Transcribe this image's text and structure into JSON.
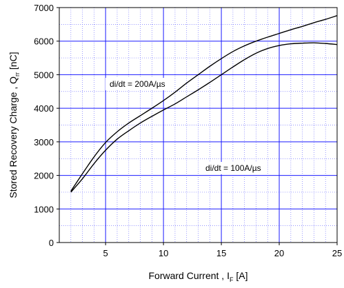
{
  "chart_data": {
    "type": "line",
    "xlabel": "Forward Current , I",
    "xlabel_sub": "F",
    "xlabel_unit": " [A]",
    "ylabel": "Stored Recovery Charge , Q",
    "ylabel_sub": "rr",
    "ylabel_unit": " [nC]",
    "xlim": [
      1,
      25
    ],
    "ylim": [
      0,
      7000
    ],
    "xticks": [
      5,
      10,
      15,
      20,
      25
    ],
    "yticks": [
      0,
      1000,
      2000,
      3000,
      4000,
      5000,
      6000,
      7000
    ],
    "grid": true,
    "grid_major_color": "#1a1aff",
    "grid_minor_color": "#6f6fff",
    "annotations": {
      "series_200": "di/dt = 200A/µs",
      "series_100": "di/dt = 100A/µs"
    },
    "series": [
      {
        "id": "series_200",
        "x": [
          2,
          3,
          4,
          5,
          6,
          7,
          8,
          9,
          10,
          11,
          12,
          13,
          14,
          15,
          16,
          17,
          18,
          19,
          20,
          21,
          22,
          23,
          24,
          25
        ],
        "y": [
          1530,
          2050,
          2550,
          2980,
          3300,
          3560,
          3780,
          4000,
          4230,
          4480,
          4750,
          5000,
          5250,
          5480,
          5690,
          5860,
          6000,
          6120,
          6230,
          6340,
          6440,
          6550,
          6650,
          6760
        ]
      },
      {
        "id": "series_100",
        "x": [
          2,
          3,
          4,
          5,
          6,
          7,
          8,
          9,
          10,
          11,
          12,
          13,
          14,
          15,
          16,
          17,
          18,
          19,
          20,
          21,
          22,
          23,
          24,
          25
        ],
        "y": [
          1500,
          1900,
          2350,
          2750,
          3080,
          3330,
          3560,
          3760,
          3950,
          4130,
          4340,
          4550,
          4770,
          5000,
          5230,
          5450,
          5640,
          5780,
          5870,
          5920,
          5940,
          5950,
          5930,
          5900
        ]
      }
    ]
  }
}
